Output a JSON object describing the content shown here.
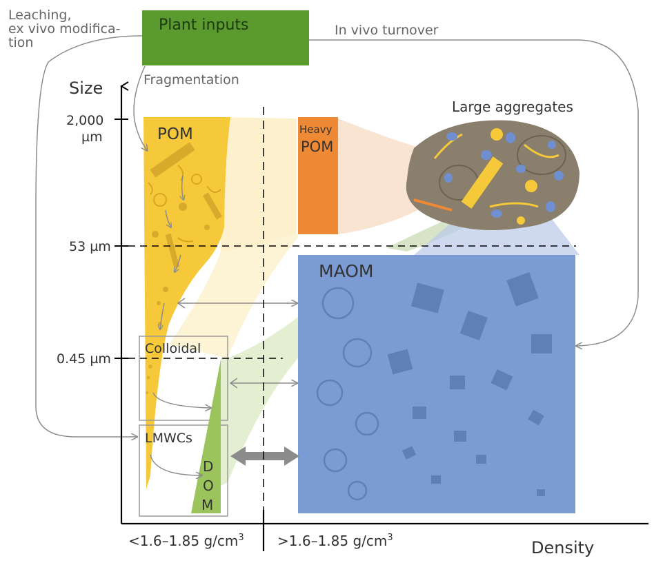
{
  "labels": {
    "leaching_line1": "Leaching,",
    "leaching_line2": "ex vivo modifica-",
    "leaching_line3": "tion",
    "plant_inputs": "Plant inputs",
    "in_vivo_turnover": "In vivo turnover",
    "fragmentation": "Fragmentation",
    "size_axis": "Size",
    "tick_2000": "2,000",
    "tick_2000_unit": "µm",
    "tick_53": "53 µm",
    "tick_045": "0.45 µm",
    "pom": "POM",
    "heavy": "Heavy",
    "heavy_pom": "POM",
    "large_aggregates": "Large aggregates",
    "maom": "MAOM",
    "colloidal": "Colloidal",
    "lmwcs": "LMWCs",
    "dom_d": "D",
    "dom_o": "O",
    "dom_m": "M",
    "density_low": "<1.6–1.85 g/cm",
    "density_low_sup": "3",
    "density_high": ">1.6–1.85 g/cm",
    "density_high_sup": "3",
    "density_axis": "Density"
  },
  "colors": {
    "plant_inputs": "#5a9a2e",
    "pom": "#f6c93a",
    "pom_fade": "#fbe6a4",
    "heavy_pom": "#ee8a35",
    "maom": "#7b9bd4",
    "maom_shapes": "#5f7fb8",
    "dom": "#9cc45c",
    "dom_fade": "#dbe9c3",
    "aggregate": "#8a7e6c",
    "arrow_gray": "#8c8c8c"
  }
}
